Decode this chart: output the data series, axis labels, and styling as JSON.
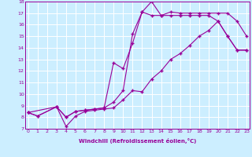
{
  "xlabel": "Windchill (Refroidissement éolien,°C)",
  "background_color": "#cceeff",
  "grid_color": "#ffffff",
  "line_color": "#990099",
  "x_min": 0,
  "x_max": 23,
  "y_min": 7,
  "y_max": 18,
  "line1_x": [
    0,
    1,
    3,
    4,
    5,
    6,
    7,
    8,
    9,
    10,
    11,
    12,
    13,
    14,
    15,
    16,
    17,
    18,
    19,
    20,
    21,
    22,
    23
  ],
  "line1_y": [
    8.4,
    8.1,
    8.9,
    8.0,
    8.5,
    8.6,
    8.7,
    8.8,
    9.3,
    10.3,
    15.2,
    17.1,
    18.0,
    16.8,
    17.1,
    17.0,
    17.0,
    17.0,
    17.0,
    17.0,
    17.0,
    16.3,
    15.0
  ],
  "line2_x": [
    0,
    1,
    3,
    4,
    5,
    6,
    7,
    8,
    9,
    10,
    11,
    12,
    13,
    14,
    15,
    16,
    17,
    18,
    19,
    20,
    21,
    22,
    23
  ],
  "line2_y": [
    8.4,
    8.1,
    8.9,
    8.0,
    8.5,
    8.6,
    8.7,
    8.8,
    12.7,
    12.2,
    14.4,
    17.1,
    16.8,
    16.8,
    16.8,
    16.8,
    16.8,
    16.8,
    16.8,
    16.3,
    15.0,
    13.8,
    13.8
  ],
  "line3_x": [
    0,
    3,
    4,
    5,
    6,
    7,
    8,
    9,
    10,
    11,
    12,
    13,
    14,
    15,
    16,
    17,
    18,
    19,
    20,
    21,
    22,
    23
  ],
  "line3_y": [
    8.4,
    8.9,
    7.2,
    8.1,
    8.5,
    8.6,
    8.7,
    8.8,
    9.5,
    10.3,
    10.2,
    11.3,
    12.0,
    13.0,
    13.5,
    14.2,
    15.0,
    15.5,
    16.3,
    15.0,
    13.8,
    13.8
  ]
}
